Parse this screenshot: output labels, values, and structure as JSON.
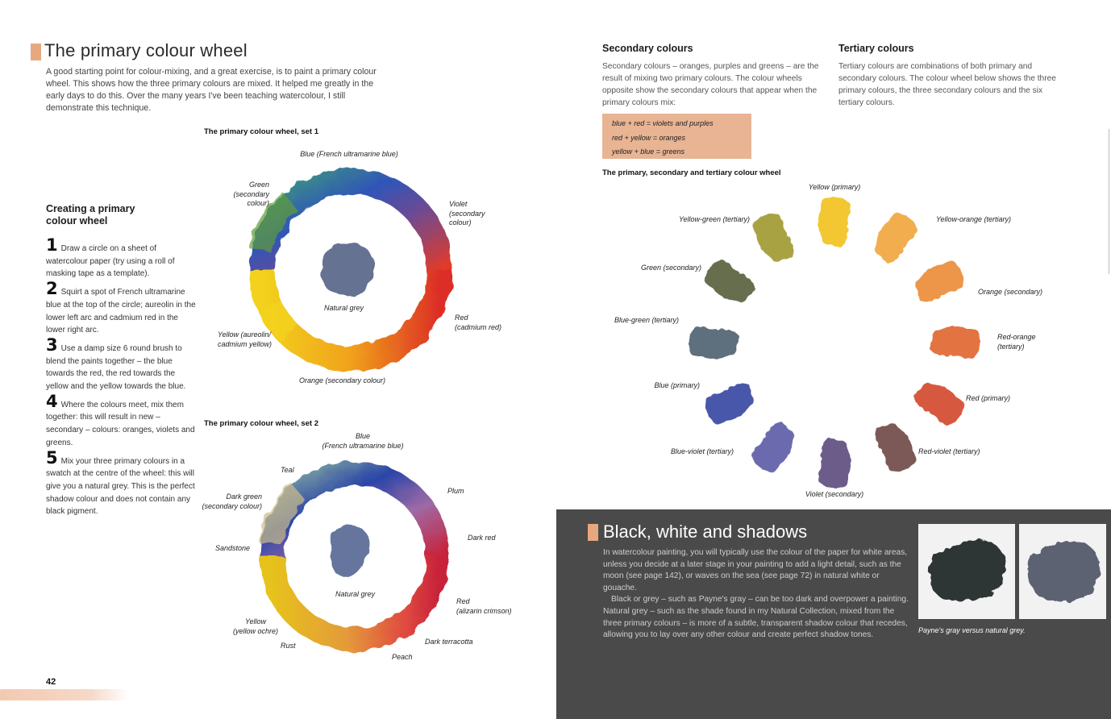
{
  "left_page": {
    "title": "The primary colour wheel",
    "intro": "A good starting point for colour-mixing, and a great exercise, is to paint a primary colour wheel. This shows how the three primary colours are mixed. It helped me greatly in the early days to do this. Over the many years I've been teaching watercolour, I still demonstrate this technique.",
    "wheel1": {
      "caption": "The primary colour wheel, set 1",
      "labels": {
        "top": "Blue (French ultramarine blue)",
        "topleft": "Green\n(secondary\ncolour)",
        "topright": "Violet\n(secondary\ncolour)",
        "right": "Red\n(cadmium red)",
        "left": "Yellow (aureolin/\ncadmium yellow)",
        "bottom": "Orange (secondary colour)",
        "centre": "Natural grey"
      }
    },
    "wheel2": {
      "caption": "The primary colour wheel, set 2",
      "labels": {
        "top": "Blue\n(French ultramarine blue)",
        "teal": "Teal",
        "plum": "Plum",
        "darkgreen": "Dark green\n(secondary colour)",
        "darkred": "Dark red",
        "sandstone": "Sandstone",
        "red": "Red\n(alizarin crimson)",
        "yellow": "Yellow\n(yellow ochre)",
        "rust": "Rust",
        "darkterracotta": "Dark terracotta",
        "peach": "Peach",
        "centre": "Natural grey"
      }
    },
    "steps_heading": "Creating a primary\ncolour wheel",
    "steps": [
      {
        "num": "1",
        "text": "Draw a circle on a sheet of watercolour paper (try using a roll of masking tape as a template)."
      },
      {
        "num": "2",
        "text": "Squirt a spot of French ultramarine blue at the top of the circle; aureolin in the lower left arc and cadmium red in the lower right arc."
      },
      {
        "num": "3",
        "text": "Use a damp size 6 round brush to blend the paints together – the blue towards the red, the red towards the yellow and the yellow towards the blue."
      },
      {
        "num": "4",
        "text": "Where the colours meet, mix them together: this will result in new – secondary – colours: oranges, violets and greens."
      },
      {
        "num": "5",
        "text": "Mix your three primary colours in a swatch at the centre of the wheel: this will give you a natural grey. This is the perfect shadow colour and does not contain any black pigment."
      }
    ],
    "page_number": "42"
  },
  "right_page": {
    "secondary": {
      "heading": "Secondary colours",
      "text": "Secondary colours – oranges, purples and greens – are the result of mixing two primary colours. The colour wheels opposite show the secondary colours that appear when the primary colours mix:",
      "mixes": [
        "blue + red = violets and purples",
        "red + yellow = oranges",
        "yellow + blue = greens"
      ]
    },
    "tertiary": {
      "heading": "Tertiary colours",
      "text": "Tertiary colours are combinations of both primary and secondary colours. The colour wheel below shows the three primary colours, the three secondary colours and the six tertiary colours."
    },
    "wheel3": {
      "caption": "The primary, secondary and tertiary colour wheel",
      "swatches": [
        {
          "label": "Yellow (primary)",
          "color": "#f2c21a"
        },
        {
          "label": "Yellow-orange (tertiary)",
          "color": "#f0a53a"
        },
        {
          "label": "Orange (secondary)",
          "color": "#ec8a34"
        },
        {
          "label": "Red-orange\n(tertiary)",
          "color": "#e0652e"
        },
        {
          "label": "Red (primary)",
          "color": "#d2462a"
        },
        {
          "label": "Red-violet (tertiary)",
          "color": "#6e4744"
        },
        {
          "label": "Violet (secondary)",
          "color": "#5d4c7e"
        },
        {
          "label": "Blue-violet (tertiary)",
          "color": "#5c5aa6"
        },
        {
          "label": "Blue (primary)",
          "color": "#3644a0"
        },
        {
          "label": "Blue-green (tertiary)",
          "color": "#4d6070"
        },
        {
          "label": "Green (secondary)",
          "color": "#565f3a"
        },
        {
          "label": "Yellow-green (tertiary)",
          "color": "#a0992f"
        }
      ]
    },
    "shadows": {
      "heading": "Black, white and shadows",
      "para1": "In watercolour painting, you will typically use the colour of the paper for white areas, unless you decide at a later stage in your painting to add a light detail, such as the moon (see page 142), or waves on the sea (see page 72) in natural white or gouache.",
      "para2": "Black or grey – such as Payne's gray – can be too dark and overpower a painting. Natural grey – such as the shade found in my Natural Collection, mixed from the three primary colours – is more of a subtle, transparent shadow colour that recedes, allowing you to lay over any other colour and create perfect shadow tones.",
      "caption": "Payne's gray versus natural grey.",
      "colors": {
        "paynes_gray": "#2f3436",
        "natural_grey": "#5d6272"
      }
    }
  },
  "colors": {
    "accent": "#e7a77f",
    "dark_panel": "#4a4a4a"
  }
}
